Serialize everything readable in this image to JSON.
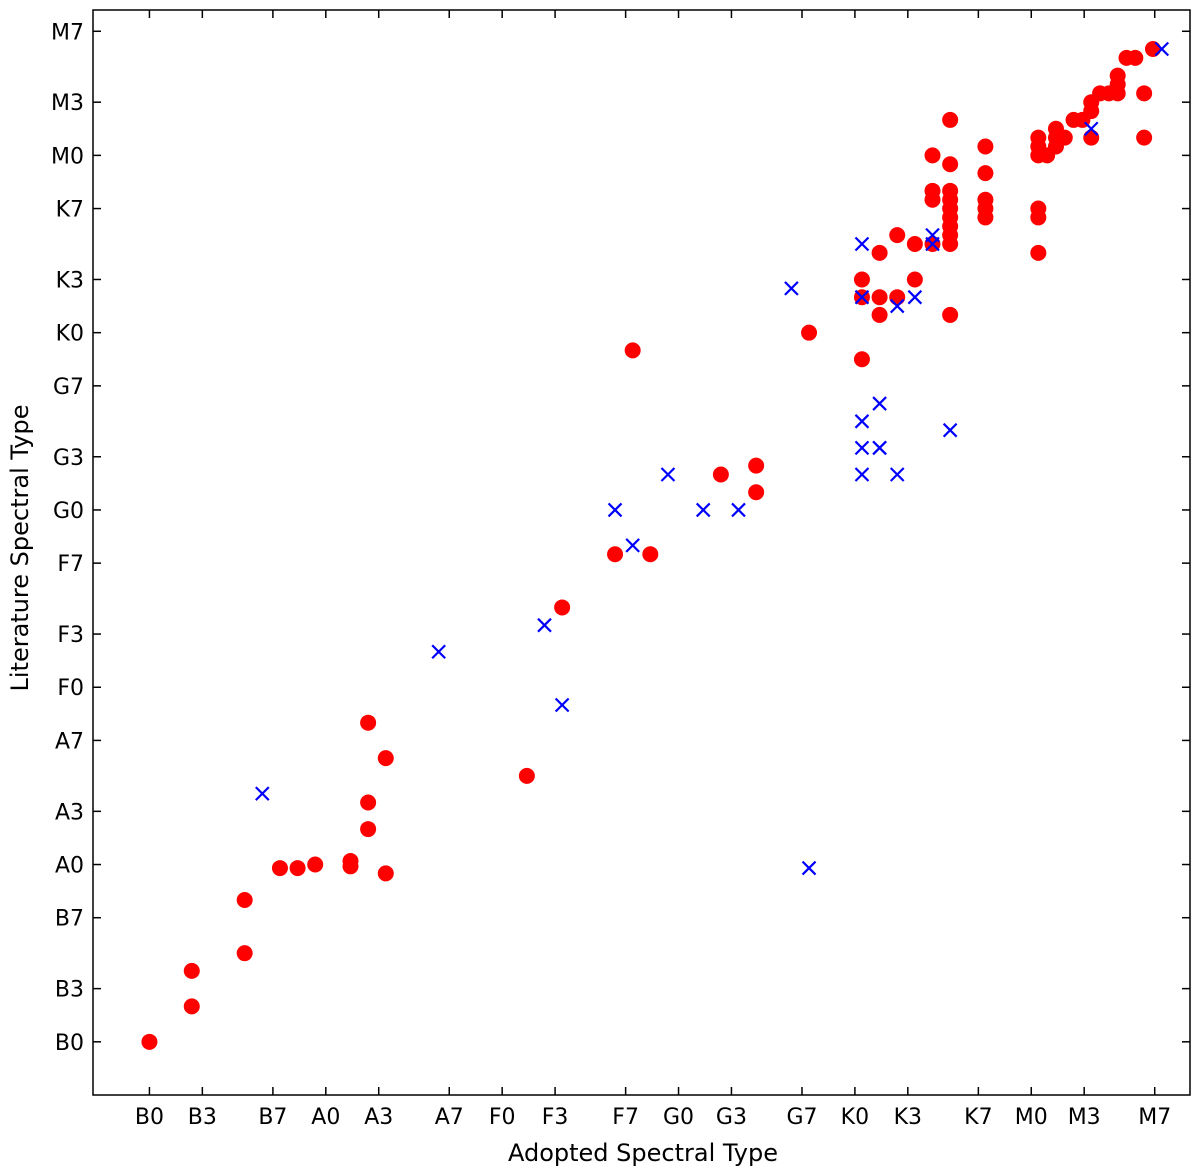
{
  "chart_data": {
    "type": "scatter",
    "title": "",
    "xlabel": "Adopted Spectral Type",
    "ylabel": "Literature Spectral Type",
    "xlim": [
      -3.2,
      59.0
    ],
    "ylim": [
      -3.0,
      58.2
    ],
    "xticks": [
      {
        "v": 0,
        "label": "B0"
      },
      {
        "v": 3,
        "label": "B3"
      },
      {
        "v": 7,
        "label": "B7"
      },
      {
        "v": 10,
        "label": "A0"
      },
      {
        "v": 13,
        "label": "A3"
      },
      {
        "v": 17,
        "label": "A7"
      },
      {
        "v": 20,
        "label": "F0"
      },
      {
        "v": 23,
        "label": "F3"
      },
      {
        "v": 27,
        "label": "F7"
      },
      {
        "v": 30,
        "label": "G0"
      },
      {
        "v": 33,
        "label": "G3"
      },
      {
        "v": 37,
        "label": "G7"
      },
      {
        "v": 40,
        "label": "K0"
      },
      {
        "v": 43,
        "label": "K3"
      },
      {
        "v": 47,
        "label": "K7"
      },
      {
        "v": 50,
        "label": "M0"
      },
      {
        "v": 53,
        "label": "M3"
      },
      {
        "v": 57,
        "label": "M7"
      }
    ],
    "yticks": [
      {
        "v": 0,
        "label": "B0"
      },
      {
        "v": 3,
        "label": "B3"
      },
      {
        "v": 7,
        "label": "B7"
      },
      {
        "v": 10,
        "label": "A0"
      },
      {
        "v": 13,
        "label": "A3"
      },
      {
        "v": 17,
        "label": "A7"
      },
      {
        "v": 20,
        "label": "F0"
      },
      {
        "v": 23,
        "label": "F3"
      },
      {
        "v": 27,
        "label": "F7"
      },
      {
        "v": 30,
        "label": "G0"
      },
      {
        "v": 33,
        "label": "G3"
      },
      {
        "v": 37,
        "label": "G7"
      },
      {
        "v": 40,
        "label": "K0"
      },
      {
        "v": 43,
        "label": "K3"
      },
      {
        "v": 47,
        "label": "K7"
      },
      {
        "v": 50,
        "label": "M0"
      },
      {
        "v": 53,
        "label": "M3"
      },
      {
        "v": 57,
        "label": "M7"
      }
    ],
    "grid": false,
    "series": [
      {
        "marker": "circle",
        "color": "#ff0000",
        "points": [
          [
            0,
            0
          ],
          [
            2.4,
            2
          ],
          [
            2.4,
            4
          ],
          [
            5.4,
            5
          ],
          [
            5.4,
            8
          ],
          [
            7.4,
            9.8
          ],
          [
            8.4,
            9.8
          ],
          [
            9.4,
            10
          ],
          [
            11.4,
            9.9
          ],
          [
            11.4,
            10.2
          ],
          [
            12.4,
            12
          ],
          [
            12.4,
            13.5
          ],
          [
            12.4,
            18
          ],
          [
            13.4,
            9.5
          ],
          [
            13.4,
            16
          ],
          [
            21.4,
            15
          ],
          [
            23.4,
            24.5
          ],
          [
            26.4,
            27.5
          ],
          [
            27.4,
            39
          ],
          [
            28.4,
            27.5
          ],
          [
            32.4,
            32
          ],
          [
            34.4,
            32.5
          ],
          [
            34.4,
            31
          ],
          [
            37.4,
            40
          ],
          [
            40.4,
            42
          ],
          [
            40.4,
            43
          ],
          [
            40.4,
            38.5
          ],
          [
            41.4,
            44.5
          ],
          [
            41.4,
            42
          ],
          [
            41.4,
            41
          ],
          [
            42.4,
            42
          ],
          [
            42.4,
            45.5
          ],
          [
            43.4,
            43
          ],
          [
            43.4,
            45
          ],
          [
            44.4,
            45
          ],
          [
            44.4,
            47.5
          ],
          [
            44.4,
            48
          ],
          [
            44.4,
            50
          ],
          [
            45.4,
            45
          ],
          [
            45.4,
            45.5
          ],
          [
            45.4,
            46
          ],
          [
            45.4,
            46.5
          ],
          [
            45.4,
            47
          ],
          [
            45.4,
            47.5
          ],
          [
            45.4,
            48
          ],
          [
            45.4,
            49.5
          ],
          [
            45.4,
            52
          ],
          [
            45.4,
            41
          ],
          [
            47.4,
            46.5
          ],
          [
            47.4,
            47
          ],
          [
            47.4,
            47.5
          ],
          [
            47.4,
            49
          ],
          [
            47.4,
            50.5
          ],
          [
            50.4,
            44.5
          ],
          [
            50.4,
            46.5
          ],
          [
            50.4,
            47
          ],
          [
            50.4,
            50
          ],
          [
            50.4,
            50.5
          ],
          [
            50.4,
            51
          ],
          [
            50.9,
            50
          ],
          [
            51.4,
            50.5
          ],
          [
            51.4,
            51
          ],
          [
            51.4,
            51.5
          ],
          [
            51.9,
            51
          ],
          [
            52.4,
            52
          ],
          [
            52.9,
            52
          ],
          [
            53.4,
            51
          ],
          [
            53.4,
            52.5
          ],
          [
            53.4,
            53
          ],
          [
            53.9,
            53.5
          ],
          [
            54.4,
            53.5
          ],
          [
            54.9,
            53.5
          ],
          [
            54.9,
            54
          ],
          [
            54.9,
            54.5
          ],
          [
            55.4,
            55.5
          ],
          [
            55.9,
            55.5
          ],
          [
            56.4,
            53.5
          ],
          [
            56.4,
            51
          ],
          [
            56.9,
            56
          ]
        ]
      },
      {
        "marker": "x",
        "color": "#0000ff",
        "points": [
          [
            6.4,
            14
          ],
          [
            16.4,
            22
          ],
          [
            22.4,
            23.5
          ],
          [
            23.4,
            19
          ],
          [
            26.4,
            30
          ],
          [
            27.4,
            28
          ],
          [
            29.4,
            32
          ],
          [
            31.4,
            30
          ],
          [
            33.4,
            30
          ],
          [
            36.4,
            42.5
          ],
          [
            37.4,
            9.8
          ],
          [
            40.4,
            45
          ],
          [
            40.4,
            42
          ],
          [
            40.4,
            35
          ],
          [
            40.4,
            33.5
          ],
          [
            40.4,
            32
          ],
          [
            41.4,
            36
          ],
          [
            41.4,
            33.5
          ],
          [
            41.4,
            33.5
          ],
          [
            42.4,
            41.5
          ],
          [
            42.4,
            32
          ],
          [
            43.4,
            42
          ],
          [
            44.4,
            45
          ],
          [
            44.4,
            45.5
          ],
          [
            45.4,
            34.5
          ],
          [
            53.4,
            51.5
          ],
          [
            57.4,
            56
          ]
        ]
      }
    ]
  }
}
